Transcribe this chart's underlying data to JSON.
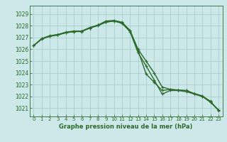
{
  "title": "Graphe pression niveau de la mer (hPa)",
  "background_color": "#cce8e8",
  "grid_color": "#aad0d0",
  "line_color": "#2d6a2d",
  "xlim": [
    -0.5,
    23.5
  ],
  "ylim": [
    1020.3,
    1029.7
  ],
  "yticks": [
    1021,
    1022,
    1023,
    1024,
    1025,
    1026,
    1027,
    1028,
    1029
  ],
  "xticks": [
    0,
    1,
    2,
    3,
    4,
    5,
    6,
    7,
    8,
    9,
    10,
    11,
    12,
    13,
    14,
    15,
    16,
    17,
    18,
    19,
    20,
    21,
    22,
    23
  ],
  "series1": [
    1026.3,
    1026.9,
    1027.1,
    1027.25,
    1027.4,
    1027.5,
    1027.55,
    1027.8,
    1028.05,
    1028.3,
    1028.4,
    1028.25,
    1027.6,
    1026.0,
    1025.0,
    1024.0,
    1022.8,
    1022.6,
    1022.5,
    1022.4,
    1022.2,
    1022.0,
    1021.6,
    1020.8
  ],
  "series2": [
    1026.3,
    1026.85,
    1027.1,
    1027.2,
    1027.4,
    1027.5,
    1027.5,
    1027.8,
    1028.0,
    1028.3,
    1028.4,
    1028.2,
    1027.5,
    1025.7,
    1024.6,
    1023.4,
    1022.2,
    1022.5,
    1022.5,
    1022.5,
    1022.2,
    1022.0,
    1021.5,
    1020.85
  ],
  "series3": [
    1026.3,
    1026.9,
    1027.15,
    1027.25,
    1027.45,
    1027.55,
    1027.55,
    1027.85,
    1028.05,
    1028.4,
    1028.45,
    1028.3,
    1027.6,
    1025.9,
    1023.9,
    1023.2,
    1022.5,
    1022.6,
    1022.55,
    1022.5,
    1022.25,
    1022.05,
    1021.55,
    1020.85
  ],
  "tick_fontsize": 5.5,
  "xlabel_fontsize": 6.0,
  "linewidth": 1.0,
  "markersize": 2.5
}
